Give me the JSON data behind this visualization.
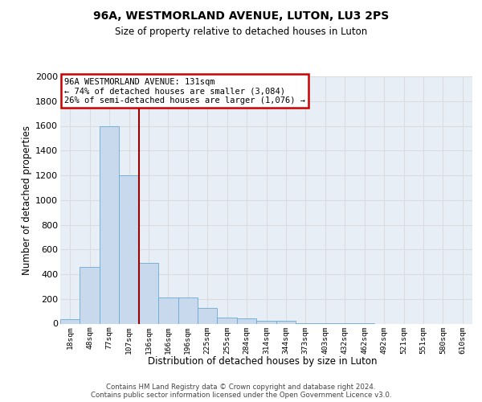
{
  "title": "96A, WESTMORLAND AVENUE, LUTON, LU3 2PS",
  "subtitle": "Size of property relative to detached houses in Luton",
  "xlabel": "Distribution of detached houses by size in Luton",
  "ylabel": "Number of detached properties",
  "footer_line1": "Contains HM Land Registry data © Crown copyright and database right 2024.",
  "footer_line2": "Contains public sector information licensed under the Open Government Licence v3.0.",
  "annotation_line1": "96A WESTMORLAND AVENUE: 131sqm",
  "annotation_line2": "← 74% of detached houses are smaller (3,084)",
  "annotation_line3": "26% of semi-detached houses are larger (1,076) →",
  "bar_labels": [
    "18sqm",
    "48sqm",
    "77sqm",
    "107sqm",
    "136sqm",
    "166sqm",
    "196sqm",
    "225sqm",
    "255sqm",
    "284sqm",
    "314sqm",
    "344sqm",
    "373sqm",
    "403sqm",
    "432sqm",
    "462sqm",
    "492sqm",
    "521sqm",
    "551sqm",
    "580sqm",
    "610sqm"
  ],
  "bar_values": [
    35,
    460,
    1600,
    1200,
    490,
    210,
    210,
    130,
    50,
    40,
    25,
    20,
    5,
    2,
    1,
    1,
    0,
    0,
    0,
    0,
    0
  ],
  "bar_color": "#c8d9ee",
  "bar_edge_color": "#6aaad4",
  "grid_color": "#d8dce0",
  "plot_bg_color": "#e8eef5",
  "vline_x": 3.5,
  "vline_color": "#990000",
  "annotation_box_edgecolor": "#cc0000",
  "ylim_max": 2000,
  "yticks": [
    0,
    200,
    400,
    600,
    800,
    1000,
    1200,
    1400,
    1600,
    1800,
    2000
  ]
}
